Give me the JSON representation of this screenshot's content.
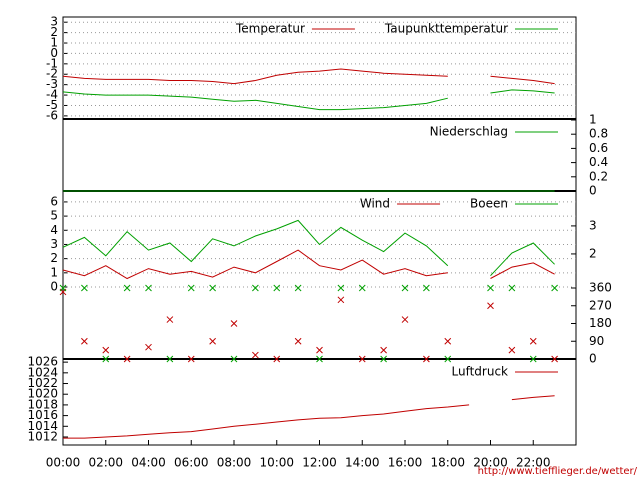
{
  "chart_data": [
    {
      "type": "line",
      "x": [
        0,
        1,
        2,
        3,
        4,
        5,
        6,
        7,
        8,
        9,
        10,
        11,
        12,
        13,
        14,
        15,
        16,
        17,
        18,
        19,
        20,
        21,
        22,
        23
      ],
      "xlim": [
        0,
        24
      ],
      "ylim": [
        -6.3,
        3.5
      ],
      "yticks": [
        3,
        2,
        1,
        0,
        -1,
        -2,
        -3,
        -4,
        -5,
        -6
      ],
      "grid": true,
      "series": [
        {
          "name": "Temperatur",
          "color": "#c00000",
          "values": [
            -2.2,
            -2.4,
            -2.5,
            -2.5,
            -2.5,
            -2.6,
            -2.6,
            -2.7,
            -2.9,
            -2.6,
            -2.1,
            -1.8,
            -1.7,
            -1.5,
            -1.7,
            -1.9,
            -2.0,
            -2.1,
            -2.2,
            null,
            -2.2,
            -2.4,
            -2.6,
            -2.9
          ]
        },
        {
          "name": "Taupunkttemperatur",
          "color": "#00a000",
          "values": [
            -3.7,
            -3.9,
            -4.0,
            -4.0,
            -4.0,
            -4.1,
            -4.2,
            -4.4,
            -4.6,
            -4.5,
            -4.8,
            -5.1,
            -5.4,
            -5.4,
            -5.3,
            -5.2,
            -5.0,
            -4.8,
            -4.3,
            null,
            -3.8,
            -3.5,
            -3.6,
            -3.8
          ]
        }
      ]
    },
    {
      "type": "line",
      "x": [
        0,
        1,
        2,
        3,
        4,
        5,
        6,
        7,
        8,
        9,
        10,
        11,
        12,
        13,
        14,
        15,
        16,
        17,
        18,
        19,
        20,
        21,
        22,
        23
      ],
      "xlim": [
        0,
        24
      ],
      "y2lim": [
        0,
        1
      ],
      "y2ticks": [
        1,
        0.8,
        0.6,
        0.4,
        0.2,
        0
      ],
      "grid": false,
      "series": [
        {
          "name": "Niederschlag",
          "color": "#00a000",
          "axis": "y2",
          "values": [
            0,
            0,
            0,
            0,
            0,
            0,
            0,
            0,
            0,
            0,
            0,
            0,
            0,
            0,
            0,
            0,
            0,
            0,
            0,
            0,
            0,
            0,
            0,
            0
          ]
        }
      ]
    },
    {
      "type": "line",
      "x": [
        0,
        1,
        2,
        3,
        4,
        5,
        6,
        7,
        8,
        9,
        10,
        11,
        12,
        13,
        14,
        15,
        16,
        17,
        18,
        19,
        20,
        21,
        22,
        23
      ],
      "xlim": [
        0,
        24
      ],
      "ylim": [
        0,
        6.7
      ],
      "yticks": [
        6,
        5,
        4,
        3,
        2,
        1,
        0
      ],
      "y2lim": [
        0.82,
        4.21
      ],
      "y2ticks": [
        3,
        2
      ],
      "grid": true,
      "series": [
        {
          "name": "Wind",
          "color": "#c00000",
          "values": [
            1.2,
            0.8,
            1.5,
            0.6,
            1.3,
            0.9,
            1.1,
            0.7,
            1.4,
            1.0,
            1.8,
            2.6,
            1.5,
            1.2,
            1.9,
            0.9,
            1.3,
            0.8,
            1.0,
            null,
            0.6,
            1.4,
            1.7,
            0.9
          ]
        },
        {
          "name": "Boeen",
          "color": "#00a000",
          "values": [
            2.8,
            3.5,
            2.2,
            3.9,
            2.6,
            3.1,
            1.8,
            3.4,
            2.9,
            3.6,
            4.1,
            4.7,
            3.0,
            4.2,
            3.3,
            2.5,
            3.8,
            2.9,
            1.5,
            null,
            0.8,
            2.4,
            3.1,
            1.6
          ]
        }
      ]
    },
    {
      "type": "scatter",
      "x": [
        0,
        1,
        2,
        3,
        4,
        5,
        6,
        7,
        8,
        9,
        10,
        11,
        12,
        13,
        14,
        15,
        16,
        17,
        18,
        19,
        20,
        21,
        22,
        23
      ],
      "xlim": [
        0,
        24
      ],
      "y2lim": [
        0,
        360
      ],
      "y2ticks": [
        360,
        270,
        180,
        90,
        0
      ],
      "grid": false,
      "series": [
        {
          "color": "#c00000",
          "axis": "y2",
          "values": [
            340,
            90,
            45,
            0,
            60,
            200,
            0,
            90,
            180,
            20,
            0,
            90,
            45,
            300,
            0,
            45,
            200,
            0,
            90,
            null,
            270,
            45,
            90,
            0
          ]
        },
        {
          "color": "#00a000",
          "axis": "y2",
          "values": [
            360,
            360,
            0,
            360,
            360,
            0,
            360,
            360,
            0,
            360,
            360,
            360,
            0,
            360,
            360,
            0,
            360,
            360,
            0,
            null,
            360,
            360,
            0,
            360
          ]
        }
      ]
    },
    {
      "type": "line",
      "x": [
        0,
        1,
        2,
        3,
        4,
        5,
        6,
        7,
        8,
        9,
        10,
        11,
        12,
        13,
        14,
        15,
        16,
        17,
        18,
        19,
        20,
        21,
        22,
        23
      ],
      "xlim": [
        0,
        24
      ],
      "ylim": [
        1010.5,
        1026.4
      ],
      "yticks": [
        1026,
        1024,
        1022,
        1020,
        1018,
        1016,
        1014,
        1012
      ],
      "grid": false,
      "xticks": [
        {
          "value": 0,
          "label": "00:00"
        },
        {
          "value": 2,
          "label": "02:00"
        },
        {
          "value": 4,
          "label": "04:00"
        },
        {
          "value": 6,
          "label": "06:00"
        },
        {
          "value": 8,
          "label": "08:00"
        },
        {
          "value": 10,
          "label": "10:00"
        },
        {
          "value": 12,
          "label": "12:00"
        },
        {
          "value": 14,
          "label": "14:00"
        },
        {
          "value": 16,
          "label": "16:00"
        },
        {
          "value": 18,
          "label": "18:00"
        },
        {
          "value": 20,
          "label": "20:00"
        },
        {
          "value": 22,
          "label": "22:00"
        }
      ],
      "series": [
        {
          "name": "Luftdruck",
          "color": "#c00000",
          "values": [
            1011.8,
            1011.8,
            1012.0,
            1012.2,
            1012.5,
            1012.8,
            1013.0,
            1013.5,
            1014.0,
            1014.4,
            1014.8,
            1015.2,
            1015.5,
            1015.6,
            1016.0,
            1016.3,
            1016.8,
            1017.3,
            1017.6,
            1018.0,
            null,
            1019.0,
            1019.4,
            1019.7
          ]
        }
      ]
    }
  ],
  "footer": "http://www.tiefflieger.de/wetter/"
}
